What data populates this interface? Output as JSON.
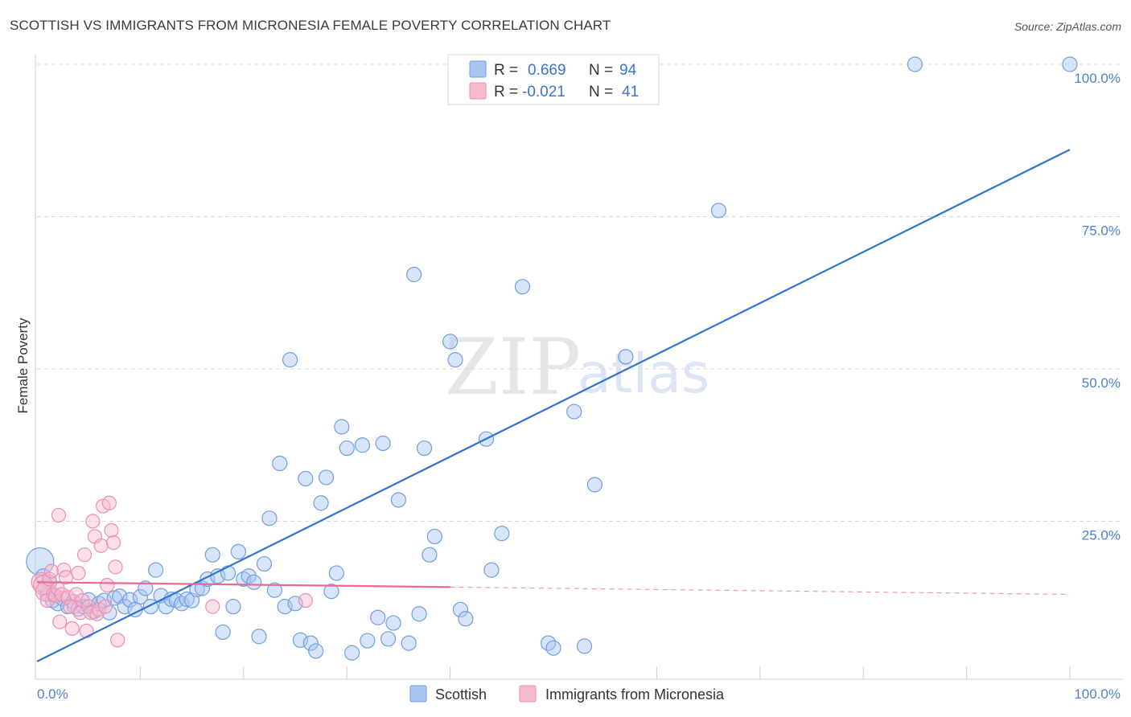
{
  "header": {
    "title": "SCOTTISH VS IMMIGRANTS FROM MICRONESIA FEMALE POVERTY CORRELATION CHART",
    "source": "Source: ZipAtlas.com"
  },
  "watermark": {
    "zip": "ZIP",
    "atlas": "atlas"
  },
  "legend": {
    "rows": [
      {
        "r_label": "R =",
        "r_value": "0.669",
        "n_label": "N =",
        "n_value": "94"
      },
      {
        "r_label": "R =",
        "r_value": "-0.021",
        "n_label": "N =",
        "n_value": "41"
      }
    ]
  },
  "bottom_legend": {
    "series1": "Scottish",
    "series2": "Immigrants from Micronesia"
  },
  "colors": {
    "blue_fill": "#a9c6f0",
    "blue_stroke": "#6f9ee0",
    "blue_line": "#2f74cf",
    "pink_fill": "#f6b9cf",
    "pink_stroke": "#ec8fb0",
    "pink_line": "#e8699a",
    "grid": "#d9d9d9"
  },
  "chart_data": {
    "type": "scatter",
    "title": "SCOTTISH VS IMMIGRANTS FROM MICRONESIA FEMALE POVERTY CORRELATION CHART",
    "xlabel": "",
    "ylabel": "Female Poverty",
    "xlim": [
      0,
      100
    ],
    "ylim": [
      0,
      100
    ],
    "x_tick_labels": [
      "0.0%",
      "100.0%"
    ],
    "y_tick_labels": [
      {
        "value": 25,
        "label": "25.0%"
      },
      {
        "value": 50,
        "label": "50.0%"
      },
      {
        "value": 75,
        "label": "75.0%"
      },
      {
        "value": 100,
        "label": "100.0%"
      }
    ],
    "series": [
      {
        "name": "Scottish",
        "r": 0.669,
        "n": 94,
        "trend": {
          "x0": 0,
          "y0": 2,
          "x1": 100,
          "y1": 86
        },
        "points": [
          [
            0.3,
            18.4
          ],
          [
            0.6,
            16.0
          ],
          [
            0.8,
            14.2
          ],
          [
            1.0,
            13.0
          ],
          [
            1.2,
            15.0
          ],
          [
            1.5,
            12.0
          ],
          [
            2.0,
            11.5
          ],
          [
            2.5,
            12.3
          ],
          [
            3.0,
            11.0
          ],
          [
            3.5,
            11.8
          ],
          [
            4.0,
            10.6
          ],
          [
            4.5,
            11.0
          ],
          [
            5.0,
            12.1
          ],
          [
            5.5,
            10.2
          ],
          [
            6.0,
            11.5
          ],
          [
            6.5,
            12.0
          ],
          [
            7.0,
            10.0
          ],
          [
            7.5,
            12.4
          ],
          [
            8.0,
            12.7
          ],
          [
            8.5,
            11.0
          ],
          [
            9.0,
            12.1
          ],
          [
            9.5,
            10.5
          ],
          [
            10.0,
            12.6
          ],
          [
            10.5,
            14.0
          ],
          [
            11.0,
            11.0
          ],
          [
            11.5,
            17.0
          ],
          [
            12.0,
            12.8
          ],
          [
            12.5,
            11.0
          ],
          [
            13.0,
            12.2
          ],
          [
            13.5,
            12.0
          ],
          [
            14.0,
            11.5
          ],
          [
            14.5,
            12.2
          ],
          [
            15.0,
            12.0
          ],
          [
            15.5,
            13.8
          ],
          [
            16.0,
            14.0
          ],
          [
            16.5,
            15.5
          ],
          [
            17.0,
            19.5
          ],
          [
            17.5,
            16.0
          ],
          [
            18.0,
            6.8
          ],
          [
            18.5,
            16.5
          ],
          [
            19.0,
            11.0
          ],
          [
            19.5,
            20.0
          ],
          [
            20.0,
            15.5
          ],
          [
            20.5,
            16.0
          ],
          [
            21.0,
            15.0
          ],
          [
            21.5,
            6.1
          ],
          [
            22.0,
            18.0
          ],
          [
            22.5,
            25.5
          ],
          [
            23.0,
            13.7
          ],
          [
            23.5,
            34.5
          ],
          [
            24.0,
            11.0
          ],
          [
            24.5,
            51.5
          ],
          [
            25.0,
            11.5
          ],
          [
            25.5,
            5.5
          ],
          [
            26.0,
            32.0
          ],
          [
            26.5,
            5.0
          ],
          [
            27.0,
            3.7
          ],
          [
            27.5,
            28.0
          ],
          [
            28.0,
            32.2
          ],
          [
            28.5,
            13.5
          ],
          [
            29.0,
            16.5
          ],
          [
            29.5,
            40.5
          ],
          [
            30.0,
            37.0
          ],
          [
            30.5,
            3.4
          ],
          [
            31.5,
            37.5
          ],
          [
            32.0,
            5.4
          ],
          [
            33.0,
            9.2
          ],
          [
            33.5,
            37.8
          ],
          [
            34.0,
            5.7
          ],
          [
            34.5,
            8.3
          ],
          [
            35.0,
            28.5
          ],
          [
            36.0,
            5.0
          ],
          [
            36.5,
            65.5
          ],
          [
            37.0,
            9.8
          ],
          [
            37.5,
            37.0
          ],
          [
            38.0,
            19.5
          ],
          [
            38.5,
            22.5
          ],
          [
            40.0,
            54.5
          ],
          [
            40.5,
            51.5
          ],
          [
            41.0,
            10.5
          ],
          [
            41.5,
            9.0
          ],
          [
            43.5,
            38.5
          ],
          [
            44.0,
            17.0
          ],
          [
            45.0,
            23.0
          ],
          [
            47.0,
            63.5
          ],
          [
            49.5,
            5.0
          ],
          [
            50.0,
            4.2
          ],
          [
            52.0,
            43.0
          ],
          [
            53.0,
            4.5
          ],
          [
            54.0,
            31.0
          ],
          [
            57.0,
            52.0
          ],
          [
            66.0,
            76.0
          ],
          [
            85.0,
            100.0
          ],
          [
            100.0,
            100.0
          ]
        ]
      },
      {
        "name": "Immigrants from Micronesia",
        "r": -0.021,
        "n": 41,
        "trend": {
          "x0": 0,
          "y0": 15.0,
          "x1": 40,
          "y1": 14.2,
          "dashed_to_x": 100,
          "dashed_to_y": 13.0
        },
        "points": [
          [
            0.4,
            15.0
          ],
          [
            0.6,
            14.5
          ],
          [
            0.8,
            13.5
          ],
          [
            1.0,
            12.0
          ],
          [
            1.2,
            15.5
          ],
          [
            1.4,
            16.8
          ],
          [
            1.6,
            13.0
          ],
          [
            1.8,
            12.8
          ],
          [
            2.0,
            14.0
          ],
          [
            2.1,
            26.0
          ],
          [
            2.2,
            8.5
          ],
          [
            2.4,
            13.0
          ],
          [
            2.6,
            17.0
          ],
          [
            2.8,
            15.8
          ],
          [
            3.0,
            12.5
          ],
          [
            3.2,
            11.0
          ],
          [
            3.4,
            7.4
          ],
          [
            3.6,
            11.0
          ],
          [
            3.8,
            13.0
          ],
          [
            4.0,
            16.5
          ],
          [
            4.2,
            10.0
          ],
          [
            4.4,
            12.0
          ],
          [
            4.6,
            19.5
          ],
          [
            4.8,
            7.0
          ],
          [
            5.0,
            11.0
          ],
          [
            5.2,
            10.0
          ],
          [
            5.4,
            25.0
          ],
          [
            5.6,
            22.5
          ],
          [
            5.8,
            9.8
          ],
          [
            6.0,
            10.5
          ],
          [
            6.2,
            21.0
          ],
          [
            6.4,
            27.5
          ],
          [
            6.6,
            11.0
          ],
          [
            6.8,
            14.5
          ],
          [
            7.0,
            28.0
          ],
          [
            7.2,
            23.5
          ],
          [
            7.4,
            21.5
          ],
          [
            7.6,
            17.5
          ],
          [
            7.8,
            5.5
          ],
          [
            17.0,
            11.0
          ],
          [
            26.0,
            12.0
          ]
        ]
      }
    ]
  }
}
